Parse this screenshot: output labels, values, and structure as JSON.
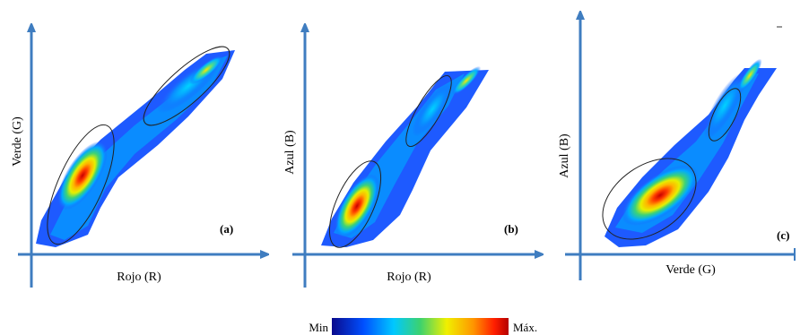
{
  "chart_data": [
    {
      "type": "heatmap",
      "panel_label": "(a)",
      "xlabel": "Rojo (R)",
      "ylabel": "Verde (G)",
      "ellipses": 2
    },
    {
      "type": "heatmap",
      "panel_label": "(b)",
      "xlabel": "Rojo (R)",
      "ylabel": "Azul (B)",
      "ellipses": 2
    },
    {
      "type": "heatmap",
      "panel_label": "(c)",
      "xlabel": "Verde (G)",
      "ylabel": "Azul (B)",
      "ellipses": 2
    }
  ],
  "colorbar": {
    "min_label": "Min",
    "max_label": "Máx.",
    "colors": [
      "#0a0a8c",
      "#0050ff",
      "#00c8ff",
      "#3cd26e",
      "#f0f000",
      "#ff9600",
      "#ff1e00",
      "#b40000"
    ]
  },
  "colors": {
    "axis": "#3f7dc0"
  }
}
